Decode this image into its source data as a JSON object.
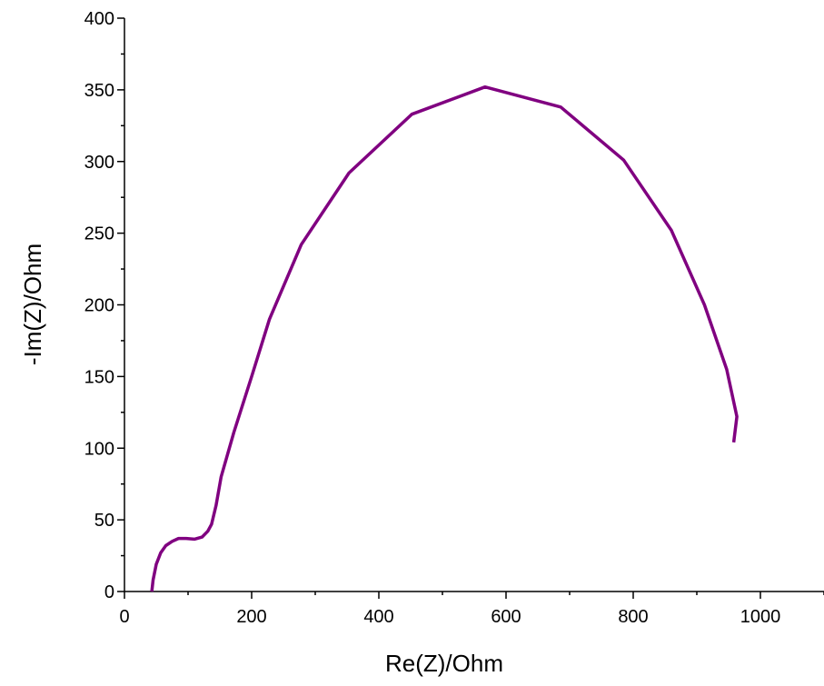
{
  "chart_data": {
    "type": "line",
    "title": "",
    "xlabel": "Re(Z)/Ohm",
    "ylabel": "-Im(Z)/Ohm",
    "xlim": [
      0,
      1100
    ],
    "ylim": [
      0,
      400
    ],
    "x_ticks": [
      0,
      200,
      400,
      600,
      800,
      1000
    ],
    "y_ticks": [
      0,
      50,
      100,
      150,
      200,
      250,
      300,
      350,
      400
    ],
    "x_tick_labels": [
      "0",
      "200",
      "400",
      "600",
      "800",
      "1000"
    ],
    "y_tick_labels": [
      "0",
      "50",
      "100",
      "150",
      "200",
      "250",
      "300",
      "350",
      "400"
    ],
    "grid": false,
    "legend": "none",
    "series": [
      {
        "color": "#800080",
        "x": [
          43,
          45,
          50,
          57,
          65,
          75,
          85,
          97,
          110,
          122,
          131,
          137,
          144,
          152,
          172,
          200,
          228,
          278,
          353,
          452,
          567,
          686,
          785,
          860,
          912,
          947,
          963,
          958
        ],
        "y": [
          0,
          8,
          19,
          27,
          32,
          35,
          37,
          37,
          36.5,
          38,
          42,
          47,
          60,
          80,
          111,
          150,
          190,
          242,
          292,
          333,
          352,
          338,
          301,
          252,
          200,
          155,
          122,
          104
        ]
      }
    ]
  }
}
